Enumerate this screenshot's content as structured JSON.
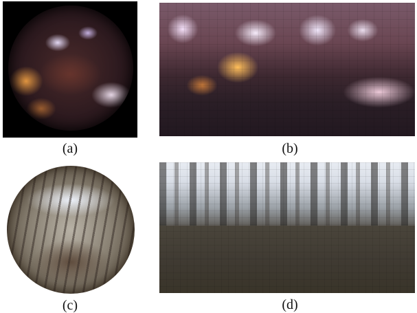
{
  "panels": [
    {
      "id": "a",
      "caption": "(a)"
    },
    {
      "id": "b",
      "caption": "(b)"
    },
    {
      "id": "c",
      "caption": "(c)"
    },
    {
      "id": "d",
      "caption": "(d)"
    }
  ]
}
